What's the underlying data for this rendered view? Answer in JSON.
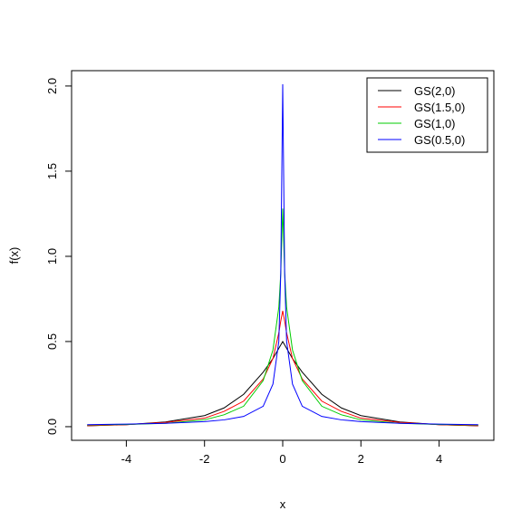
{
  "chart_data": {
    "type": "line",
    "x_label": "x",
    "y_label": "f(x)",
    "x": [
      -5,
      -4,
      -3,
      -2,
      -1.5,
      -1,
      -0.5,
      -0.25,
      -0.1,
      -0.05,
      0,
      0.05,
      0.1,
      0.25,
      0.5,
      1,
      1.5,
      2,
      3,
      4,
      5
    ],
    "series": [
      {
        "name": "GS(2,0)",
        "color": "#000000",
        "values": [
          0.005,
          0.012,
          0.028,
          0.065,
          0.11,
          0.19,
          0.32,
          0.4,
          0.46,
          0.48,
          0.5,
          0.48,
          0.46,
          0.4,
          0.32,
          0.19,
          0.11,
          0.065,
          0.028,
          0.012,
          0.005
        ]
      },
      {
        "name": "GS(1.5,0)",
        "color": "#ff0000",
        "values": [
          0.006,
          0.012,
          0.025,
          0.05,
          0.09,
          0.15,
          0.28,
          0.4,
          0.55,
          0.62,
          0.68,
          0.62,
          0.55,
          0.4,
          0.28,
          0.15,
          0.09,
          0.05,
          0.025,
          0.012,
          0.006
        ]
      },
      {
        "name": "GS(1,0)",
        "color": "#00cc00",
        "values": [
          0.01,
          0.013,
          0.02,
          0.04,
          0.07,
          0.12,
          0.27,
          0.45,
          0.7,
          0.9,
          1.28,
          0.9,
          0.7,
          0.45,
          0.27,
          0.12,
          0.07,
          0.04,
          0.02,
          0.013,
          0.01
        ]
      },
      {
        "name": "GS(0.5,0)",
        "color": "#0000ff",
        "values": [
          0.012,
          0.015,
          0.02,
          0.03,
          0.04,
          0.06,
          0.12,
          0.25,
          0.5,
          0.9,
          2.01,
          0.9,
          0.5,
          0.25,
          0.12,
          0.06,
          0.04,
          0.03,
          0.02,
          0.015,
          0.012
        ]
      }
    ],
    "xlim": [
      -5.4,
      5.4
    ],
    "ylim": [
      -0.08,
      2.09
    ],
    "xticks": [
      -4,
      -2,
      0,
      2,
      4
    ],
    "yticks": [
      {
        "value": 0,
        "label": "0.0"
      },
      {
        "value": 0.5,
        "label": "0.5"
      },
      {
        "value": 1,
        "label": "1.0"
      },
      {
        "value": 1.5,
        "label": "1.5"
      },
      {
        "value": 2,
        "label": "2.0"
      }
    ],
    "legend": "top-right",
    "grid": false
  }
}
